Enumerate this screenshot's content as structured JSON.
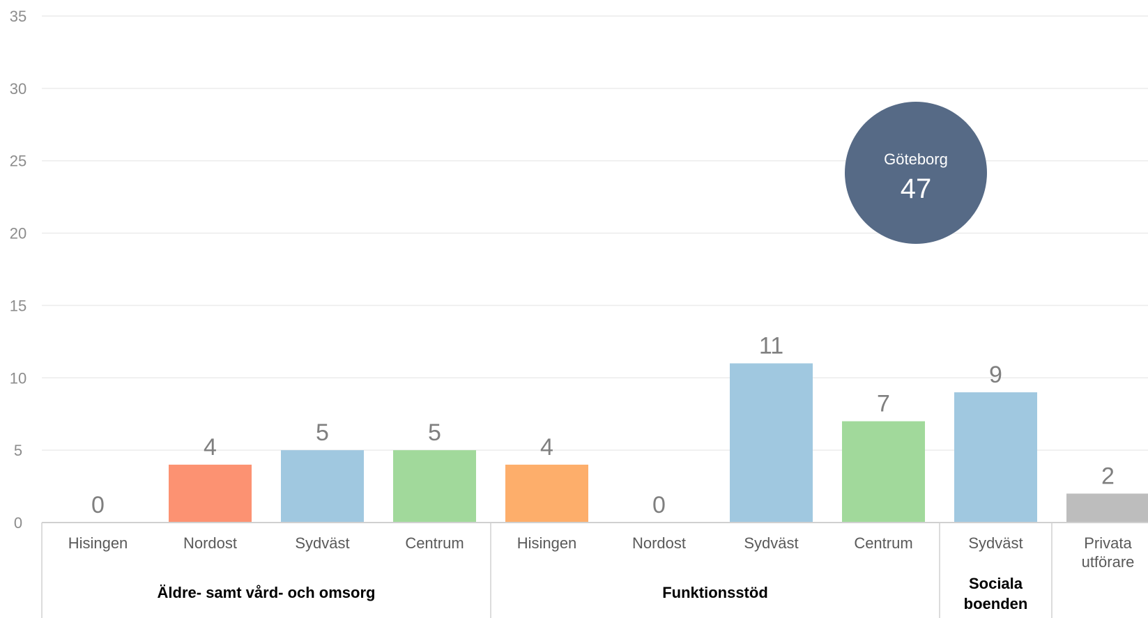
{
  "chart_data": {
    "type": "bar",
    "ylim": [
      0,
      35
    ],
    "y_ticks": [
      "0",
      "5",
      "10",
      "15",
      "20",
      "25",
      "30",
      "35"
    ],
    "grid": true,
    "categories": [
      [
        "Hisingen"
      ],
      [
        "Nordost"
      ],
      [
        "Sydväst"
      ],
      [
        "Centrum"
      ],
      [
        "Hisingen"
      ],
      [
        "Nordost"
      ],
      [
        "Sydväst"
      ],
      [
        "Centrum"
      ],
      [
        "Sydväst"
      ],
      [
        "Privata",
        "utförare"
      ]
    ],
    "values": [
      0,
      4,
      5,
      5,
      4,
      0,
      11,
      7,
      9,
      2
    ],
    "value_labels": [
      "0",
      "4",
      "5",
      "5",
      "4",
      "0",
      "11",
      "7",
      "9",
      "2"
    ],
    "colors": [
      "#a0c8e0",
      "#fc9272",
      "#a0c8e0",
      "#a1d99b",
      "#fdae6b",
      "#a0c8e0",
      "#a0c8e0",
      "#a1d99b",
      "#a0c8e0",
      "#bdbdbd"
    ],
    "groups": [
      {
        "lines": [
          "Äldre- samt vård- och omsorg"
        ],
        "span": [
          0,
          3
        ]
      },
      {
        "lines": [
          "Funktionsstöd"
        ],
        "span": [
          4,
          7
        ]
      },
      {
        "lines": [
          "Sociala",
          "boenden"
        ],
        "span": [
          8,
          8
        ]
      },
      {
        "lines": [],
        "span": [
          9,
          9
        ]
      }
    ],
    "bubble": {
      "label": "Göteborg",
      "value": "47",
      "color": "#566a86"
    }
  }
}
